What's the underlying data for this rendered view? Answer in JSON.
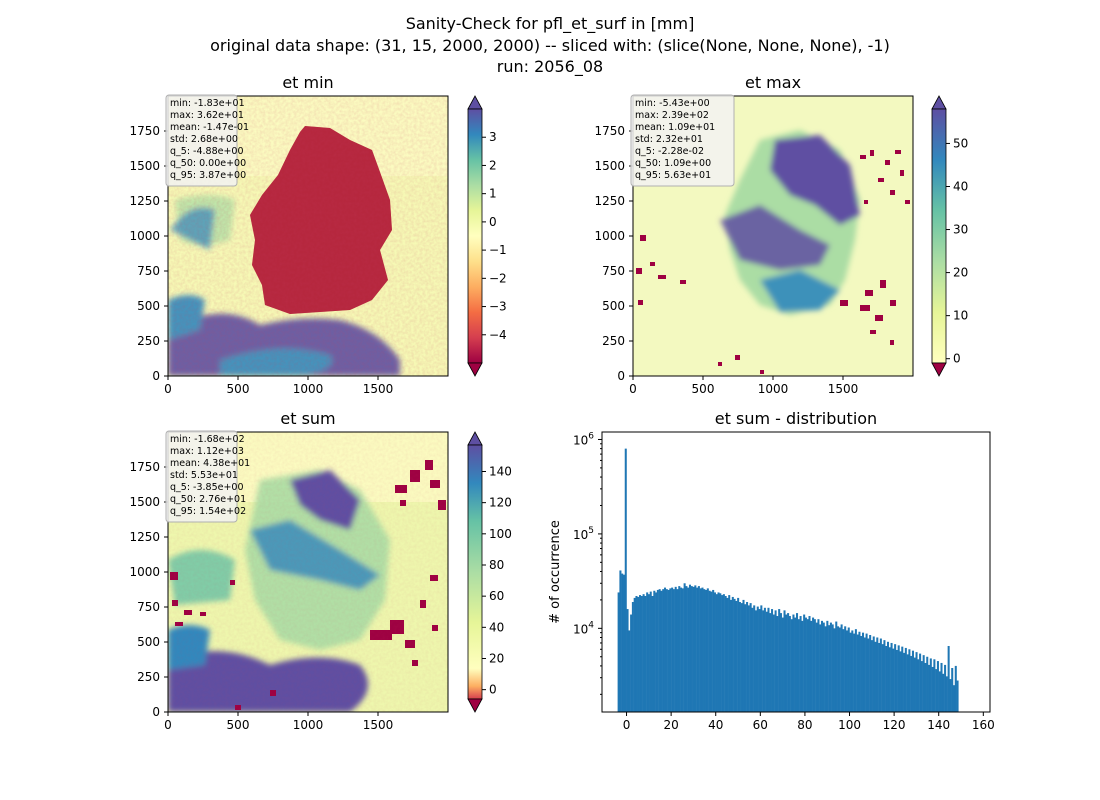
{
  "figure": {
    "title_lines": [
      "Sanity-Check for pfl_et_surf in [mm]",
      "original data shape: (31, 15, 2000, 2000) -- sliced with: (slice(None, None, None), -1)",
      "run: 2056_08"
    ]
  },
  "colors": {
    "spectral_r": [
      "#9e0142",
      "#d53e4f",
      "#f46d43",
      "#fdae61",
      "#fee08b",
      "#ffffbf",
      "#e6f598",
      "#abdda4",
      "#66c2a5",
      "#3288bd",
      "#5e4fa2"
    ],
    "bar": "#1f77b4"
  },
  "chart_data": [
    {
      "type": "heatmap",
      "title": "et min",
      "xticks": [
        0,
        500,
        1000,
        1500
      ],
      "yticks": [
        0,
        250,
        500,
        750,
        1000,
        1250,
        1500,
        1750
      ],
      "xlim": [
        0,
        2000
      ],
      "ylim": [
        0,
        2000
      ],
      "colorbar": {
        "ticks": [
          3,
          2,
          1,
          0,
          -1,
          -2,
          -3,
          -4
        ],
        "tick_labels": [
          "3",
          "2",
          "1",
          "0",
          "−1",
          "−2",
          "−3",
          "−4"
        ],
        "range": [
          -5,
          4
        ],
        "extend": "both"
      },
      "stats": [
        "min: -1.83e+01",
        "max: 3.62e+01",
        "mean: -1.47e-01",
        "std: 2.68e+00",
        "q_5: -4.88e+00",
        "q_50: 0.00e+00",
        "q_95: 3.87e+00"
      ]
    },
    {
      "type": "heatmap",
      "title": "et max",
      "xticks": [
        0,
        500,
        1000,
        1500
      ],
      "yticks": [
        0,
        250,
        500,
        750,
        1000,
        1250,
        1500,
        1750
      ],
      "xlim": [
        0,
        2000
      ],
      "ylim": [
        0,
        2000
      ],
      "colorbar": {
        "ticks": [
          50,
          40,
          30,
          20,
          10,
          0
        ],
        "tick_labels": [
          "50",
          "40",
          "30",
          "20",
          "10",
          "0"
        ],
        "range": [
          -1,
          58
        ],
        "extend": "both"
      },
      "stats": [
        "min: -5.43e+00",
        "max: 2.39e+02",
        "mean: 1.09e+01",
        "std: 2.32e+01",
        "q_5: -2.28e-02",
        "q_50: 1.09e+00",
        "q_95: 5.63e+01"
      ]
    },
    {
      "type": "heatmap",
      "title": "et sum",
      "xticks": [
        0,
        500,
        1000,
        1500
      ],
      "yticks": [
        0,
        250,
        500,
        750,
        1000,
        1250,
        1500,
        1750
      ],
      "xlim": [
        0,
        2000
      ],
      "ylim": [
        0,
        2000
      ],
      "colorbar": {
        "ticks": [
          140,
          120,
          100,
          80,
          60,
          40,
          20,
          0
        ],
        "tick_labels": [
          "140",
          "120",
          "100",
          "80",
          "60",
          "40",
          "20",
          "0"
        ],
        "range": [
          -6,
          157
        ],
        "extend": "both"
      },
      "stats": [
        "min: -1.68e+02",
        "max: 1.12e+03",
        "mean: 4.38e+01",
        "std: 5.53e+01",
        "q_5: -3.85e+00",
        "q_50: 2.76e+01",
        "q_95: 1.54e+02"
      ]
    },
    {
      "type": "bar",
      "title": "et sum - distribution",
      "ylabel": "# of occurrence",
      "yscale": "log",
      "xticks": [
        0,
        20,
        40,
        60,
        80,
        100,
        120,
        140,
        160
      ],
      "ytick_labels": [
        {
          "value": 10000,
          "base": "10",
          "exp": "4"
        },
        {
          "value": 100000,
          "base": "10",
          "exp": "5"
        },
        {
          "value": 1000000,
          "base": "10",
          "exp": "6"
        }
      ],
      "xlim": [
        -11,
        163
      ],
      "ylim": [
        1300,
        1200000
      ],
      "x_start": -4,
      "bin_width": 0.8,
      "values": [
        24000,
        41000,
        38000,
        37000,
        800000,
        16000,
        9500,
        14000,
        19000,
        21000,
        22000,
        21500,
        22500,
        22000,
        23000,
        22000,
        24000,
        23000,
        24500,
        22000,
        25000,
        24000,
        25500,
        26000,
        25000,
        26000,
        27000,
        26000,
        25500,
        26500,
        27000,
        26000,
        27500,
        26000,
        28000,
        27000,
        26500,
        30000,
        28000,
        27000,
        29000,
        28000,
        27500,
        28500,
        27000,
        28000,
        26500,
        27000,
        26000,
        25500,
        26500,
        25000,
        24500,
        25500,
        24000,
        23000,
        24000,
        23500,
        22500,
        23000,
        22000,
        21000,
        22500,
        20000,
        21500,
        20500,
        19500,
        21000,
        19000,
        18500,
        20000,
        18000,
        19000,
        17500,
        18500,
        16500,
        17500,
        15500,
        17000,
        16000,
        17500,
        15500,
        16500,
        15000,
        16500,
        14500,
        16000,
        14000,
        15500,
        13500,
        16000,
        14500,
        13000,
        15500,
        14000,
        14500,
        13500,
        12500,
        14000,
        13000,
        14500,
        12500,
        13500,
        12000,
        14000,
        13000,
        12500,
        13500,
        12000,
        13000,
        12500,
        11500,
        12500,
        11000,
        12000,
        11500,
        10500,
        12000,
        10800,
        11500,
        11000,
        10000,
        11800,
        10500,
        10200,
        11000,
        9800,
        10500,
        9500,
        10200,
        9000,
        9500,
        8800,
        9800,
        8600,
        9200,
        8300,
        9000,
        8000,
        8800,
        7800,
        8500,
        7500,
        8200,
        7200,
        8000,
        7000,
        7800,
        6800,
        7500,
        6500,
        7200,
        6300,
        7000,
        6100,
        6800,
        5900,
        6600,
        5700,
        6400,
        5500,
        6200,
        5300,
        6000,
        5100,
        5800,
        4900,
        5600,
        4700,
        5400,
        4500,
        5200,
        4300,
        5000,
        4100,
        4800,
        3900,
        4700,
        3700,
        4500,
        3500,
        4300,
        3300,
        4100,
        3100,
        6500,
        2900,
        3800,
        2500,
        4000,
        2800
      ]
    }
  ]
}
